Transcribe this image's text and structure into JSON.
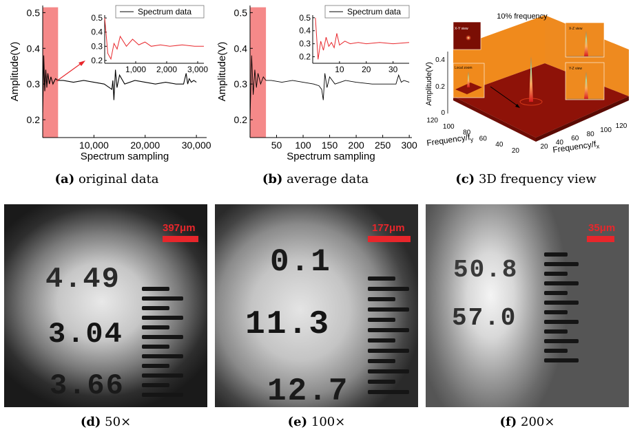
{
  "chart_data": [
    {
      "id": "a",
      "type": "line",
      "xlabel": "Spectrum sampling",
      "ylabel": "Amplitude(V)",
      "xlim": [
        0,
        32000
      ],
      "ylim": [
        0.15,
        0.52
      ],
      "xticks": [
        "10,000",
        "20,000",
        "30,000"
      ],
      "yticks": [
        "0.2",
        "0.3",
        "0.4",
        "0.5"
      ],
      "highlight_x": [
        0,
        3000
      ],
      "series": [
        {
          "name": "Spectrum data",
          "x": [
            0,
            200,
            400,
            600,
            800,
            1000,
            1300,
            1600,
            2000,
            2500,
            3000,
            4000,
            6000,
            8000,
            10000,
            12000,
            13000,
            13500,
            13700,
            13900,
            14200,
            14500,
            15000,
            16000,
            18000,
            20000,
            22000,
            24000,
            26000,
            27500,
            28000,
            28300,
            28600,
            29000,
            29500,
            30000
          ],
          "values": [
            0.22,
            0.38,
            0.28,
            0.34,
            0.29,
            0.33,
            0.3,
            0.32,
            0.3,
            0.315,
            0.31,
            0.31,
            0.305,
            0.31,
            0.305,
            0.3,
            0.29,
            0.285,
            0.31,
            0.255,
            0.34,
            0.29,
            0.325,
            0.3,
            0.31,
            0.305,
            0.3,
            0.305,
            0.3,
            0.3,
            0.33,
            0.3,
            0.315,
            0.305,
            0.31,
            0.305
          ]
        }
      ],
      "inset": {
        "legend": "Spectrum data",
        "xlim": [
          0,
          3200
        ],
        "ylim": [
          0.18,
          0.52
        ],
        "xticks": [
          "1,000",
          "2,000",
          "3,000"
        ],
        "yticks": [
          "0.2",
          "0.3",
          "0.4",
          "0.5"
        ],
        "x": [
          0,
          100,
          200,
          300,
          400,
          500,
          700,
          900,
          1100,
          1300,
          1500,
          1800,
          2100,
          2500,
          2900,
          3200
        ],
        "values": [
          0.5,
          0.25,
          0.21,
          0.32,
          0.28,
          0.37,
          0.3,
          0.35,
          0.31,
          0.33,
          0.3,
          0.31,
          0.3,
          0.31,
          0.3,
          0.3
        ]
      }
    },
    {
      "id": "b",
      "type": "line",
      "xlabel": "Spectrum sampling",
      "ylabel": "Amplitude(V)",
      "xlim": [
        0,
        305
      ],
      "ylim": [
        0.15,
        0.52
      ],
      "xticks": [
        "50",
        "100",
        "150",
        "200",
        "250",
        "300"
      ],
      "yticks": [
        "0.2",
        "0.3",
        "0.4",
        "0.5"
      ],
      "highlight_x": [
        0,
        30
      ],
      "series": [
        {
          "name": "Spectrum data",
          "x": [
            0,
            3,
            6,
            9,
            12,
            15,
            20,
            25,
            30,
            40,
            60,
            80,
            100,
            120,
            130,
            135,
            138,
            141,
            145,
            150,
            160,
            180,
            200,
            230,
            260,
            275,
            280,
            285,
            290,
            300
          ],
          "values": [
            0.2,
            0.38,
            0.27,
            0.34,
            0.29,
            0.33,
            0.3,
            0.32,
            0.31,
            0.31,
            0.305,
            0.31,
            0.305,
            0.3,
            0.295,
            0.285,
            0.255,
            0.33,
            0.29,
            0.32,
            0.3,
            0.31,
            0.305,
            0.3,
            0.3,
            0.3,
            0.325,
            0.305,
            0.31,
            0.305
          ]
        }
      ],
      "inset": {
        "legend": "Spectrum data",
        "xlim": [
          0,
          36
        ],
        "ylim": [
          0.15,
          0.52
        ],
        "xticks": [
          "10",
          "20",
          "30"
        ],
        "yticks": [
          "0.2",
          "0.3",
          "0.4",
          "0.5"
        ],
        "x": [
          1,
          2,
          3,
          4,
          5,
          6,
          7,
          8,
          9,
          10,
          12,
          14,
          17,
          20,
          25,
          30,
          36
        ],
        "values": [
          0.5,
          0.18,
          0.32,
          0.25,
          0.35,
          0.28,
          0.31,
          0.27,
          0.38,
          0.29,
          0.32,
          0.3,
          0.31,
          0.3,
          0.31,
          0.3,
          0.31
        ]
      }
    },
    {
      "id": "c",
      "type": "surface3d",
      "title": "10% frequency",
      "zlabel": "Amplitude(V)",
      "xlabel": "Frequency/fx",
      "ylabel": "Frequency/fy",
      "zticks": [
        "0",
        "0.2",
        "0.4"
      ],
      "xticks": [
        "20",
        "40",
        "60",
        "80",
        "100",
        "120"
      ],
      "yticks": [
        "20",
        "40",
        "60",
        "80",
        "100",
        "120"
      ],
      "insets": [
        "X-Y view",
        "X-Z view",
        "Y-Z view",
        "Local zoom"
      ]
    }
  ],
  "captions": {
    "a": {
      "letter": "(a)",
      "text": "original data"
    },
    "b": {
      "letter": "(b)",
      "text": "average data"
    },
    "c": {
      "letter": "(c)",
      "text": "3D frequency view"
    },
    "d": {
      "letter": "(d)",
      "text": "50×"
    },
    "e": {
      "letter": "(e)",
      "text": "100×"
    },
    "f": {
      "letter": "(f)",
      "text": "200×"
    }
  },
  "images": {
    "d": {
      "scale": "397μm",
      "numbers": [
        "4.49",
        "3.04",
        "3.66"
      ]
    },
    "e": {
      "scale": "177μm",
      "numbers": [
        "0.1",
        "11.3",
        "12.7"
      ]
    },
    "f": {
      "scale": "35μm",
      "numbers": [
        "50.8",
        "57.0"
      ]
    }
  },
  "colors": {
    "highlight": "#f47c7c",
    "inset_line": "#e8262b",
    "scale_red": "#e8262b",
    "surface": "#f08a1c",
    "floor": "#8e1208"
  }
}
